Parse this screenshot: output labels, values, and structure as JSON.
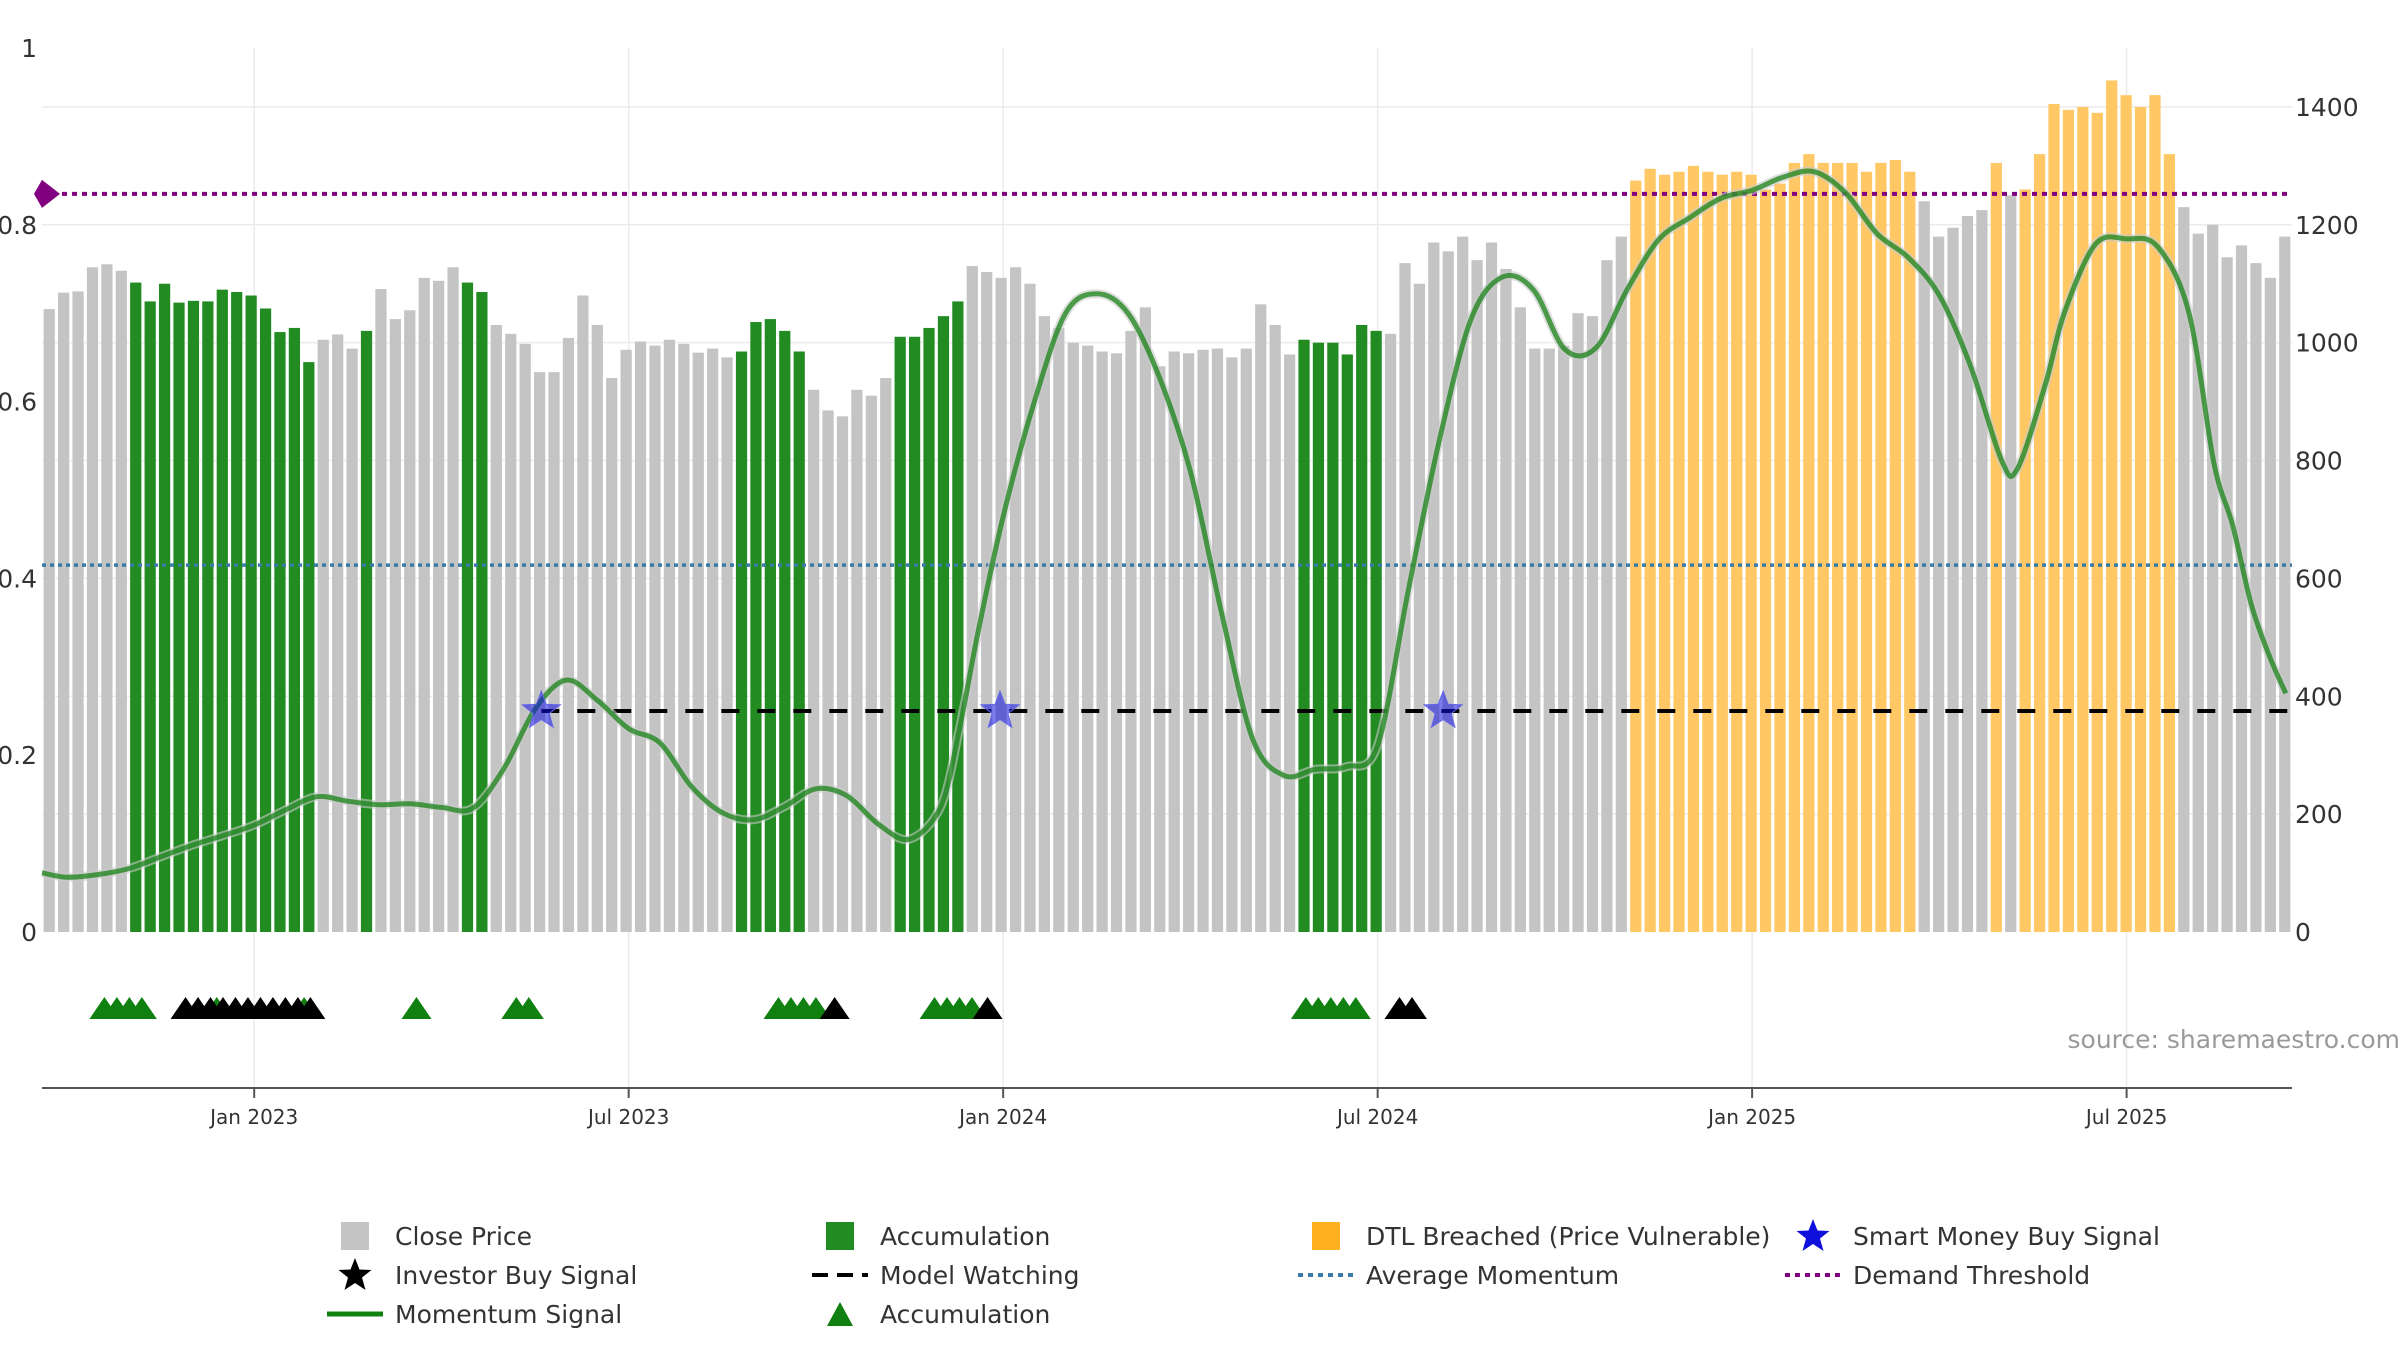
{
  "source_note": "source: sharemaestro.com",
  "colors": {
    "close_price": "#c4c4c4",
    "accumulation": "#228b22",
    "dtl_breached": "#ffc864",
    "momentum": "#1e7d1e",
    "momentum_dark": "#108010",
    "average_momentum": "#3a7ca5",
    "demand_threshold": "#800080",
    "smart_money": "#1010dd",
    "investor_buy": "#000000",
    "model_watching": "#000000"
  },
  "legend": [
    {
      "key": "close_price",
      "label": "Close Price",
      "symbol": "square-icon"
    },
    {
      "key": "accumulation",
      "label": "Accumulation",
      "symbol": "square-icon"
    },
    {
      "key": "dtl_breached",
      "label": "DTL Breached (Price Vulnerable)",
      "symbol": "square-icon"
    },
    {
      "key": "smart_money",
      "label": "Smart Money Buy Signal",
      "symbol": "star-icon"
    },
    {
      "key": "investor_buy",
      "label": "Investor Buy Signal",
      "symbol": "star-icon"
    },
    {
      "key": "model_watching",
      "label": "Model Watching",
      "symbol": "dash-icon"
    },
    {
      "key": "average_momentum",
      "label": "Average Momentum",
      "symbol": "dotted-line-icon"
    },
    {
      "key": "demand_threshold",
      "label": "Demand Threshold",
      "symbol": "dotted-line-icon"
    },
    {
      "key": "momentum",
      "label": "Momentum Signal",
      "symbol": "line-icon"
    },
    {
      "key": "accumulation",
      "label": "Accumulation",
      "symbol": "triangle-icon"
    }
  ],
  "chart_data": {
    "type": "bar",
    "title": "",
    "x_ticks": [
      {
        "label": "Jan 2023",
        "t": 1.0
      },
      {
        "label": "Jul 2023",
        "t": 7.0
      },
      {
        "label": "Jan 2024",
        "t": 13.0
      },
      {
        "label": "Jul 2024",
        "t": 19.0
      },
      {
        "label": "Jan 2025",
        "t": 25.0
      },
      {
        "label": "Jul 2025",
        "t": 31.0
      }
    ],
    "x_range_months": [
      -2.4,
      33.65
    ],
    "left_axis": {
      "range": [
        0,
        1
      ],
      "ticks": [
        0,
        0.2,
        0.4,
        0.6,
        0.8,
        1
      ]
    },
    "right_axis": {
      "range": [
        0,
        1500
      ],
      "ticks": [
        0,
        200,
        400,
        600,
        800,
        1000,
        1200,
        1400
      ]
    },
    "average_momentum": 0.415,
    "demand_threshold": 0.835,
    "model_watching_level": 0.25,
    "close_price": [
      {
        "v": 1057,
        "c": "g"
      },
      {
        "v": 1085,
        "c": "g"
      },
      {
        "v": 1087,
        "c": "g"
      },
      {
        "v": 1128,
        "c": "g"
      },
      {
        "v": 1133,
        "c": "g"
      },
      {
        "v": 1122,
        "c": "g"
      },
      {
        "v": 1102,
        "c": "a"
      },
      {
        "v": 1070,
        "c": "a"
      },
      {
        "v": 1100,
        "c": "a"
      },
      {
        "v": 1068,
        "c": "a"
      },
      {
        "v": 1071,
        "c": "a"
      },
      {
        "v": 1070,
        "c": "a"
      },
      {
        "v": 1090,
        "c": "a"
      },
      {
        "v": 1086,
        "c": "a"
      },
      {
        "v": 1080,
        "c": "a"
      },
      {
        "v": 1058,
        "c": "a"
      },
      {
        "v": 1018,
        "c": "a"
      },
      {
        "v": 1025,
        "c": "a"
      },
      {
        "v": 967,
        "c": "a"
      },
      {
        "v": 1005,
        "c": "g"
      },
      {
        "v": 1014,
        "c": "g"
      },
      {
        "v": 990,
        "c": "g"
      },
      {
        "v": 1020,
        "c": "a"
      },
      {
        "v": 1091,
        "c": "g"
      },
      {
        "v": 1040,
        "c": "g"
      },
      {
        "v": 1055,
        "c": "g"
      },
      {
        "v": 1110,
        "c": "g"
      },
      {
        "v": 1105,
        "c": "g"
      },
      {
        "v": 1128,
        "c": "g"
      },
      {
        "v": 1102,
        "c": "a"
      },
      {
        "v": 1086,
        "c": "a"
      },
      {
        "v": 1030,
        "c": "g"
      },
      {
        "v": 1015,
        "c": "g"
      },
      {
        "v": 998,
        "c": "g"
      },
      {
        "v": 950,
        "c": "g"
      },
      {
        "v": 950,
        "c": "g"
      },
      {
        "v": 1008,
        "c": "g"
      },
      {
        "v": 1080,
        "c": "g"
      },
      {
        "v": 1030,
        "c": "g"
      },
      {
        "v": 940,
        "c": "g"
      },
      {
        "v": 988,
        "c": "g"
      },
      {
        "v": 1002,
        "c": "g"
      },
      {
        "v": 995,
        "c": "g"
      },
      {
        "v": 1005,
        "c": "g"
      },
      {
        "v": 998,
        "c": "g"
      },
      {
        "v": 983,
        "c": "g"
      },
      {
        "v": 990,
        "c": "g"
      },
      {
        "v": 975,
        "c": "g"
      },
      {
        "v": 985,
        "c": "a"
      },
      {
        "v": 1035,
        "c": "a"
      },
      {
        "v": 1040,
        "c": "a"
      },
      {
        "v": 1020,
        "c": "a"
      },
      {
        "v": 985,
        "c": "a"
      },
      {
        "v": 920,
        "c": "g"
      },
      {
        "v": 885,
        "c": "g"
      },
      {
        "v": 875,
        "c": "g"
      },
      {
        "v": 920,
        "c": "g"
      },
      {
        "v": 910,
        "c": "g"
      },
      {
        "v": 940,
        "c": "g"
      },
      {
        "v": 1010,
        "c": "a"
      },
      {
        "v": 1010,
        "c": "a"
      },
      {
        "v": 1025,
        "c": "a"
      },
      {
        "v": 1045,
        "c": "a"
      },
      {
        "v": 1070,
        "c": "a"
      },
      {
        "v": 1130,
        "c": "g"
      },
      {
        "v": 1120,
        "c": "g"
      },
      {
        "v": 1110,
        "c": "g"
      },
      {
        "v": 1128,
        "c": "g"
      },
      {
        "v": 1100,
        "c": "g"
      },
      {
        "v": 1045,
        "c": "g"
      },
      {
        "v": 1025,
        "c": "g"
      },
      {
        "v": 1000,
        "c": "g"
      },
      {
        "v": 995,
        "c": "g"
      },
      {
        "v": 985,
        "c": "g"
      },
      {
        "v": 982,
        "c": "g"
      },
      {
        "v": 1020,
        "c": "g"
      },
      {
        "v": 1060,
        "c": "g"
      },
      {
        "v": 960,
        "c": "g"
      },
      {
        "v": 985,
        "c": "g"
      },
      {
        "v": 982,
        "c": "g"
      },
      {
        "v": 988,
        "c": "g"
      },
      {
        "v": 990,
        "c": "g"
      },
      {
        "v": 975,
        "c": "g"
      },
      {
        "v": 990,
        "c": "g"
      },
      {
        "v": 1065,
        "c": "g"
      },
      {
        "v": 1030,
        "c": "g"
      },
      {
        "v": 980,
        "c": "g"
      },
      {
        "v": 1005,
        "c": "a"
      },
      {
        "v": 1000,
        "c": "a"
      },
      {
        "v": 1000,
        "c": "a"
      },
      {
        "v": 980,
        "c": "a"
      },
      {
        "v": 1030,
        "c": "a"
      },
      {
        "v": 1020,
        "c": "a"
      },
      {
        "v": 1015,
        "c": "g"
      },
      {
        "v": 1135,
        "c": "g"
      },
      {
        "v": 1100,
        "c": "g"
      },
      {
        "v": 1170,
        "c": "g"
      },
      {
        "v": 1155,
        "c": "g"
      },
      {
        "v": 1180,
        "c": "g"
      },
      {
        "v": 1140,
        "c": "g"
      },
      {
        "v": 1170,
        "c": "g"
      },
      {
        "v": 1125,
        "c": "g"
      },
      {
        "v": 1060,
        "c": "g"
      },
      {
        "v": 990,
        "c": "g"
      },
      {
        "v": 990,
        "c": "g"
      },
      {
        "v": 995,
        "c": "g"
      },
      {
        "v": 1050,
        "c": "g"
      },
      {
        "v": 1045,
        "c": "g"
      },
      {
        "v": 1140,
        "c": "g"
      },
      {
        "v": 1180,
        "c": "g"
      },
      {
        "v": 1275,
        "c": "o"
      },
      {
        "v": 1295,
        "c": "o"
      },
      {
        "v": 1285,
        "c": "o"
      },
      {
        "v": 1290,
        "c": "o"
      },
      {
        "v": 1300,
        "c": "o"
      },
      {
        "v": 1290,
        "c": "o"
      },
      {
        "v": 1285,
        "c": "o"
      },
      {
        "v": 1290,
        "c": "o"
      },
      {
        "v": 1285,
        "c": "o"
      },
      {
        "v": 1260,
        "c": "o"
      },
      {
        "v": 1270,
        "c": "o"
      },
      {
        "v": 1305,
        "c": "o"
      },
      {
        "v": 1320,
        "c": "o"
      },
      {
        "v": 1305,
        "c": "o"
      },
      {
        "v": 1305,
        "c": "o"
      },
      {
        "v": 1305,
        "c": "o"
      },
      {
        "v": 1290,
        "c": "o"
      },
      {
        "v": 1305,
        "c": "o"
      },
      {
        "v": 1310,
        "c": "o"
      },
      {
        "v": 1290,
        "c": "o"
      },
      {
        "v": 1240,
        "c": "g"
      },
      {
        "v": 1180,
        "c": "g"
      },
      {
        "v": 1195,
        "c": "g"
      },
      {
        "v": 1215,
        "c": "g"
      },
      {
        "v": 1225,
        "c": "g"
      },
      {
        "v": 1305,
        "c": "o"
      },
      {
        "v": 1250,
        "c": "g"
      },
      {
        "v": 1260,
        "c": "o"
      },
      {
        "v": 1320,
        "c": "o"
      },
      {
        "v": 1405,
        "c": "o"
      },
      {
        "v": 1395,
        "c": "o"
      },
      {
        "v": 1400,
        "c": "o"
      },
      {
        "v": 1390,
        "c": "o"
      },
      {
        "v": 1445,
        "c": "o"
      },
      {
        "v": 1420,
        "c": "o"
      },
      {
        "v": 1400,
        "c": "o"
      },
      {
        "v": 1420,
        "c": "o"
      },
      {
        "v": 1320,
        "c": "o"
      },
      {
        "v": 1230,
        "c": "g"
      },
      {
        "v": 1185,
        "c": "g"
      },
      {
        "v": 1200,
        "c": "g"
      },
      {
        "v": 1145,
        "c": "g"
      },
      {
        "v": 1165,
        "c": "g"
      },
      {
        "v": 1135,
        "c": "g"
      },
      {
        "v": 1110,
        "c": "g"
      },
      {
        "v": 1180,
        "c": "g"
      }
    ],
    "momentum_signal": [
      [
        -2.4,
        0.067
      ],
      [
        -2.0,
        0.062
      ],
      [
        -1.5,
        0.065
      ],
      [
        -1.0,
        0.072
      ],
      [
        -0.5,
        0.085
      ],
      [
        0.0,
        0.098
      ],
      [
        0.5,
        0.109
      ],
      [
        1.0,
        0.121
      ],
      [
        1.5,
        0.138
      ],
      [
        2.0,
        0.153
      ],
      [
        2.5,
        0.148
      ],
      [
        3.0,
        0.144
      ],
      [
        3.5,
        0.145
      ],
      [
        4.0,
        0.141
      ],
      [
        4.5,
        0.14
      ],
      [
        5.0,
        0.185
      ],
      [
        5.5,
        0.252
      ],
      [
        6.0,
        0.285
      ],
      [
        6.5,
        0.262
      ],
      [
        7.0,
        0.23
      ],
      [
        7.5,
        0.214
      ],
      [
        8.0,
        0.165
      ],
      [
        8.5,
        0.135
      ],
      [
        9.0,
        0.127
      ],
      [
        9.5,
        0.142
      ],
      [
        10.0,
        0.162
      ],
      [
        10.5,
        0.154
      ],
      [
        11.0,
        0.122
      ],
      [
        11.5,
        0.105
      ],
      [
        12.0,
        0.142
      ],
      [
        12.3,
        0.23
      ],
      [
        12.6,
        0.34
      ],
      [
        13.0,
        0.47
      ],
      [
        13.5,
        0.6
      ],
      [
        14.0,
        0.7
      ],
      [
        14.5,
        0.722
      ],
      [
        15.0,
        0.7
      ],
      [
        15.5,
        0.628
      ],
      [
        16.0,
        0.521
      ],
      [
        16.5,
        0.361
      ],
      [
        17.0,
        0.218
      ],
      [
        17.5,
        0.177
      ],
      [
        18.0,
        0.184
      ],
      [
        18.5,
        0.187
      ],
      [
        19.0,
        0.211
      ],
      [
        19.5,
        0.39
      ],
      [
        20.0,
        0.56
      ],
      [
        20.5,
        0.694
      ],
      [
        21.0,
        0.741
      ],
      [
        21.5,
        0.726
      ],
      [
        22.0,
        0.659
      ],
      [
        22.5,
        0.661
      ],
      [
        23.0,
        0.727
      ],
      [
        23.5,
        0.783
      ],
      [
        24.0,
        0.808
      ],
      [
        24.5,
        0.83
      ],
      [
        25.0,
        0.839
      ],
      [
        25.5,
        0.854
      ],
      [
        26.0,
        0.86
      ],
      [
        26.5,
        0.836
      ],
      [
        27.0,
        0.79
      ],
      [
        27.5,
        0.763
      ],
      [
        28.0,
        0.72
      ],
      [
        28.5,
        0.64
      ],
      [
        29.0,
        0.533
      ],
      [
        29.25,
        0.524
      ],
      [
        29.7,
        0.62
      ],
      [
        30.0,
        0.7
      ],
      [
        30.5,
        0.778
      ],
      [
        31.0,
        0.784
      ],
      [
        31.5,
        0.775
      ],
      [
        32.0,
        0.7
      ],
      [
        32.4,
        0.53
      ],
      [
        32.7,
        0.46
      ],
      [
        33.0,
        0.37
      ],
      [
        33.3,
        0.31
      ],
      [
        33.55,
        0.27
      ]
    ],
    "smart_money_signals": [
      5.6,
      12.95,
      20.05
    ],
    "investor_buy_signals": [
      -0.1,
      0.1,
      0.3,
      0.5,
      0.7,
      0.9,
      1.1,
      1.3,
      1.5,
      1.7,
      1.9,
      10.3,
      12.75,
      19.35,
      19.55
    ],
    "accumulation_triangles": [
      -1.4,
      -1.2,
      -1.0,
      -0.8,
      0.4,
      1.8,
      3.6,
      5.2,
      5.4,
      9.4,
      9.6,
      9.8,
      10.0,
      11.9,
      12.1,
      12.3,
      12.5,
      17.85,
      18.05,
      18.25,
      18.45,
      18.65
    ]
  }
}
